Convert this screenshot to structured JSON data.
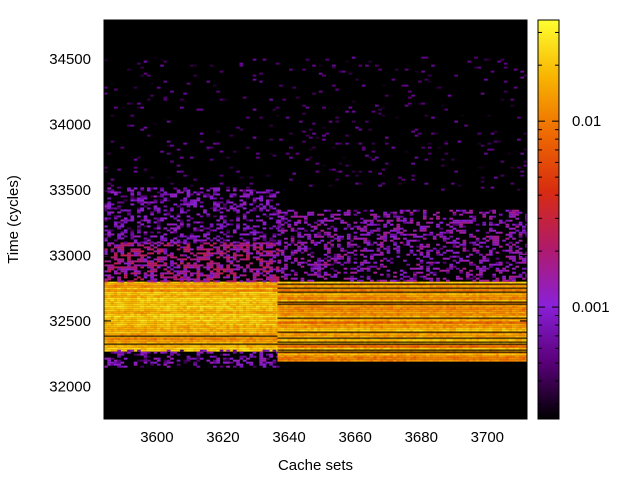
{
  "chart_data": {
    "type": "heatmap",
    "title": "",
    "xlabel": "Cache sets",
    "ylabel": "Time (cycles)",
    "xlim": [
      3584,
      3712
    ],
    "ylim": [
      31750,
      34800
    ],
    "x_ticks": [
      3600,
      3620,
      3640,
      3660,
      3680,
      3700
    ],
    "y_ticks": [
      32000,
      32500,
      33000,
      33500,
      34000,
      34500
    ],
    "colorbar": {
      "scale": "log",
      "range": [
        0.00025,
        0.035
      ],
      "tick_values": [
        0.001,
        0.01
      ],
      "tick_labels": [
        "0.001",
        "0.01"
      ],
      "colormap": [
        "#000000",
        "#5a007a",
        "#8a20d8",
        "#b01a6a",
        "#d82c10",
        "#ee6a00",
        "#f8b400",
        "#ffff30"
      ]
    },
    "regions": [
      {
        "x": [
          3584,
          3636.5
        ],
        "y": [
          32280,
          32800
        ],
        "level": 0.016,
        "label": "hot band, left group"
      },
      {
        "x": [
          3584,
          3636.5
        ],
        "y": [
          32800,
          33100
        ],
        "level": 0.0012,
        "label": "warm band above, left group"
      },
      {
        "x": [
          3584,
          3636.5
        ],
        "y": [
          33100,
          33520
        ],
        "level": 0.0006,
        "label": "sparse activity, left group"
      },
      {
        "x": [
          3584,
          3636.5
        ],
        "y": [
          32150,
          32280
        ],
        "level": 0.0006,
        "label": "sparse activity below, left group"
      },
      {
        "x": [
          3636.5,
          3712
        ],
        "y": [
          32200,
          32800
        ],
        "level": 0.013,
        "label": "hot band, right group"
      },
      {
        "x": [
          3636.5,
          3712
        ],
        "y": [
          32800,
          33350
        ],
        "level": 0.0008,
        "label": "sparse activity, right group"
      },
      {
        "x": [
          3584,
          3712
        ],
        "y": [
          33500,
          34520
        ],
        "level": 0.0003,
        "label": "faint scattered events"
      }
    ]
  }
}
